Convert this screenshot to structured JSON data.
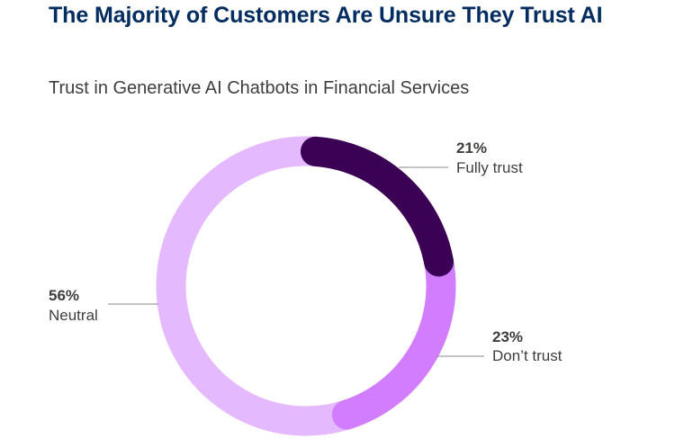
{
  "header": {
    "title": "The Majority of Customers Are Unsure They Trust AI"
  },
  "chart_data": {
    "type": "pie",
    "variant": "donut",
    "title": "Trust in Generative AI Chatbots in Financial Services",
    "slices": [
      {
        "label": "Fully trust",
        "value": 21,
        "display": "21%",
        "color": "#3b0154"
      },
      {
        "label": "Don’t trust",
        "value": 23,
        "display": "23%",
        "color": "#d17dfe"
      },
      {
        "label": "Neutral",
        "value": 56,
        "display": "56%",
        "color": "#e5b9fe"
      }
    ]
  }
}
